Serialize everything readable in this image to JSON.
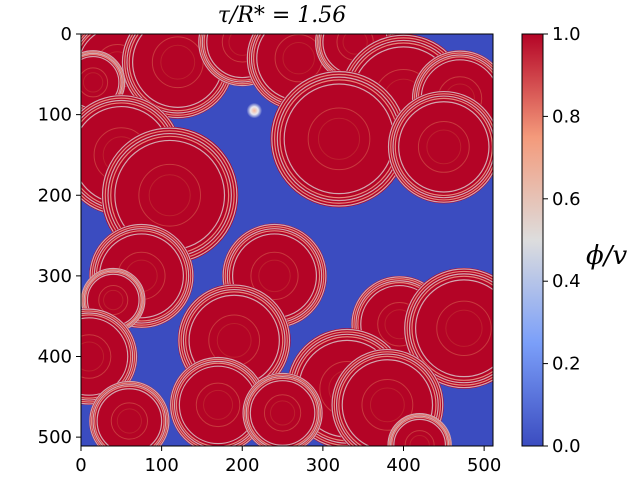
{
  "chart_data": {
    "type": "heatmap",
    "title": "τ/R* = 1.56",
    "xlabel": "",
    "ylabel": "",
    "xlim": [
      0,
      511
    ],
    "ylim": [
      511,
      0
    ],
    "x_ticks": [
      "0",
      "100",
      "200",
      "300",
      "400",
      "500"
    ],
    "y_ticks": [
      "0",
      "100",
      "200",
      "300",
      "400",
      "500"
    ],
    "colorbar": {
      "label": "ϕ/v",
      "range": [
        0.0,
        1.0
      ],
      "ticks": [
        "0.0",
        "0.2",
        "0.4",
        "0.6",
        "0.8",
        "1.0"
      ],
      "colormap": "coolwarm"
    },
    "colors": {
      "low": "#3b4cc0",
      "high": "#b40426",
      "mid": "#dddddd"
    },
    "bubbles": [
      {
        "cx": 45,
        "cy": 40,
        "r": 60
      },
      {
        "cx": 120,
        "cy": 35,
        "r": 70
      },
      {
        "cx": 200,
        "cy": 10,
        "r": 55
      },
      {
        "cx": 270,
        "cy": 30,
        "r": 65
      },
      {
        "cx": 340,
        "cy": 10,
        "r": 50
      },
      {
        "cx": 400,
        "cy": 80,
        "r": 80
      },
      {
        "cx": 470,
        "cy": 80,
        "r": 60
      },
      {
        "cx": 320,
        "cy": 130,
        "r": 85
      },
      {
        "cx": 450,
        "cy": 140,
        "r": 70
      },
      {
        "cx": 15,
        "cy": 60,
        "r": 40
      },
      {
        "cx": 50,
        "cy": 150,
        "r": 75
      },
      {
        "cx": 110,
        "cy": 200,
        "r": 85
      },
      {
        "cx": 240,
        "cy": 300,
        "r": 65
      },
      {
        "cx": 75,
        "cy": 300,
        "r": 65
      },
      {
        "cx": 40,
        "cy": 330,
        "r": 40
      },
      {
        "cx": 10,
        "cy": 400,
        "r": 60
      },
      {
        "cx": 190,
        "cy": 380,
        "r": 70
      },
      {
        "cx": 395,
        "cy": 360,
        "r": 60
      },
      {
        "cx": 475,
        "cy": 365,
        "r": 75
      },
      {
        "cx": 330,
        "cy": 440,
        "r": 75
      },
      {
        "cx": 380,
        "cy": 460,
        "r": 70
      },
      {
        "cx": 170,
        "cy": 460,
        "r": 60
      },
      {
        "cx": 250,
        "cy": 470,
        "r": 50
      },
      {
        "cx": 60,
        "cy": 480,
        "r": 50
      },
      {
        "cx": 420,
        "cy": 510,
        "r": 40
      }
    ],
    "small_bubble": {
      "cx": 215,
      "cy": 95,
      "r": 8
    }
  }
}
